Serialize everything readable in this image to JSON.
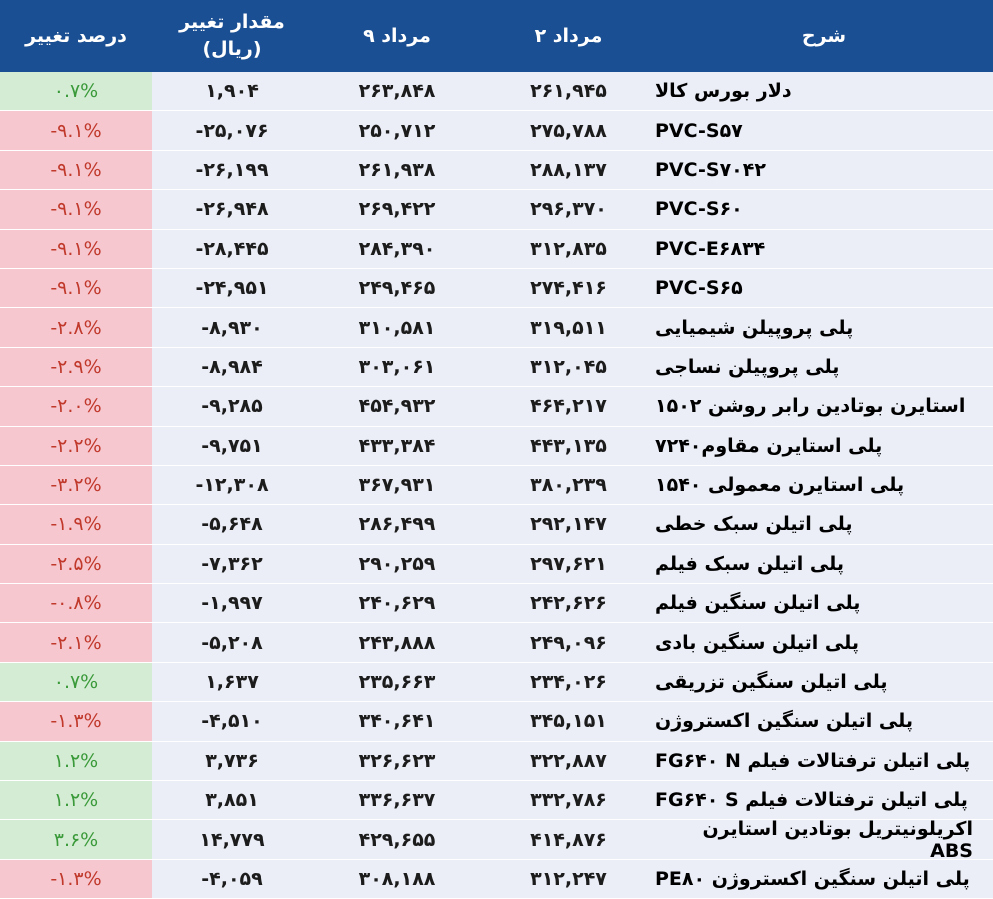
{
  "header": {
    "pct": "درصد تغییر",
    "change_line1": "مقدار تغییر",
    "change_line2": "(ریال)",
    "date9": "۹ مرداد",
    "date2": "۲ مرداد",
    "desc": "شرح"
  },
  "colors": {
    "header_bg": "#1b4f93",
    "negative_bg": "#f7c7d0",
    "positive_bg": "#d5ecd4",
    "cell_bg": "#ebeef7"
  },
  "rows": [
    {
      "desc": "دلار بورس کالا",
      "d2": "۲۶۱,۹۴۵",
      "d9": "۲۶۳,۸۴۸",
      "chg": "۱,۹۰۴",
      "pct": "۰.۷%",
      "sign": "pos"
    },
    {
      "desc": "PVC-S۵۷",
      "d2": "۲۷۵,۷۸۸",
      "d9": "۲۵۰,۷۱۲",
      "chg": "-۲۵,۰۷۶",
      "pct": "-۹.۱%",
      "sign": "neg"
    },
    {
      "desc": "PVC-S۷۰۴۲",
      "d2": "۲۸۸,۱۳۷",
      "d9": "۲۶۱,۹۳۸",
      "chg": "-۲۶,۱۹۹",
      "pct": "-۹.۱%",
      "sign": "neg"
    },
    {
      "desc": "PVC-S۶۰",
      "d2": "۲۹۶,۳۷۰",
      "d9": "۲۶۹,۴۲۲",
      "chg": "-۲۶,۹۴۸",
      "pct": "-۹.۱%",
      "sign": "neg"
    },
    {
      "desc": "PVC-E۶۸۳۴",
      "d2": "۳۱۲,۸۳۵",
      "d9": "۲۸۴,۳۹۰",
      "chg": "-۲۸,۴۴۵",
      "pct": "-۹.۱%",
      "sign": "neg"
    },
    {
      "desc": "PVC-S۶۵",
      "d2": "۲۷۴,۴۱۶",
      "d9": "۲۴۹,۴۶۵",
      "chg": "-۲۴,۹۵۱",
      "pct": "-۹.۱%",
      "sign": "neg"
    },
    {
      "desc": "پلی پروپیلن شیمیایی",
      "d2": "۳۱۹,۵۱۱",
      "d9": "۳۱۰,۵۸۱",
      "chg": "-۸,۹۳۰",
      "pct": "-۲.۸%",
      "sign": "neg"
    },
    {
      "desc": "پلی پروپیلن نساجی",
      "d2": "۳۱۲,۰۴۵",
      "d9": "۳۰۳,۰۶۱",
      "chg": "-۸,۹۸۴",
      "pct": "-۲.۹%",
      "sign": "neg"
    },
    {
      "desc": "استایرن بوتادین رابر روشن ۱۵۰۲",
      "d2": "۴۶۴,۲۱۷",
      "d9": "۴۵۴,۹۳۲",
      "chg": "-۹,۲۸۵",
      "pct": "-۲.۰%",
      "sign": "neg"
    },
    {
      "desc": "پلی استایرن مقاوم۷۲۴۰",
      "d2": "۴۴۳,۱۳۵",
      "d9": "۴۳۳,۳۸۴",
      "chg": "-۹,۷۵۱",
      "pct": "-۲.۲%",
      "sign": "neg"
    },
    {
      "desc": "پلی استایرن معمولی ۱۵۴۰",
      "d2": "۳۸۰,۲۳۹",
      "d9": "۳۶۷,۹۳۱",
      "chg": "-۱۲,۳۰۸",
      "pct": "-۳.۲%",
      "sign": "neg"
    },
    {
      "desc": "پلی اتیلن سبک خطی",
      "d2": "۲۹۲,۱۴۷",
      "d9": "۲۸۶,۴۹۹",
      "chg": "-۵,۶۴۸",
      "pct": "-۱.۹%",
      "sign": "neg"
    },
    {
      "desc": "پلی اتیلن سبک فیلم",
      "d2": "۲۹۷,۶۲۱",
      "d9": "۲۹۰,۲۵۹",
      "chg": "-۷,۳۶۲",
      "pct": "-۲.۵%",
      "sign": "neg"
    },
    {
      "desc": "پلی اتیلن سنگین فیلم",
      "d2": "۲۴۲,۶۲۶",
      "d9": "۲۴۰,۶۲۹",
      "chg": "-۱,۹۹۷",
      "pct": "-۰.۸%",
      "sign": "neg"
    },
    {
      "desc": "پلی اتیلن سنگین بادی",
      "d2": "۲۴۹,۰۹۶",
      "d9": "۲۴۳,۸۸۸",
      "chg": "-۵,۲۰۸",
      "pct": "-۲.۱%",
      "sign": "neg"
    },
    {
      "desc": "پلی اتیلن سنگین تزریقی",
      "d2": "۲۳۴,۰۲۶",
      "d9": "۲۳۵,۶۶۳",
      "chg": "۱,۶۳۷",
      "pct": "۰.۷%",
      "sign": "pos"
    },
    {
      "desc": "پلی اتیلن سنگین اکستروژن",
      "d2": "۳۴۵,۱۵۱",
      "d9": "۳۴۰,۶۴۱",
      "chg": "-۴,۵۱۰",
      "pct": "-۱.۳%",
      "sign": "neg"
    },
    {
      "desc": "پلی اتیلن ترفتالات فیلم FG۶۴۰ N",
      "d2": "۳۲۲,۸۸۷",
      "d9": "۳۲۶,۶۲۳",
      "chg": "۳,۷۳۶",
      "pct": "۱.۲%",
      "sign": "pos"
    },
    {
      "desc": "پلی اتیلن ترفتالات فیلم FG۶۴۰ S",
      "d2": "۳۳۲,۷۸۶",
      "d9": "۳۳۶,۶۳۷",
      "chg": "۳,۸۵۱",
      "pct": "۱.۲%",
      "sign": "pos"
    },
    {
      "desc": "اکریلونیتریل بوتادین استایرن ABS",
      "d2": "۴۱۴,۸۷۶",
      "d9": "۴۲۹,۶۵۵",
      "chg": "۱۴,۷۷۹",
      "pct": "۳.۶%",
      "sign": "pos"
    },
    {
      "desc": "پلی اتیلن سنگین اکستروژن PE۸۰",
      "d2": "۳۱۲,۲۴۷",
      "d9": "۳۰۸,۱۸۸",
      "chg": "-۴,۰۵۹",
      "pct": "-۱.۳%",
      "sign": "neg"
    }
  ]
}
